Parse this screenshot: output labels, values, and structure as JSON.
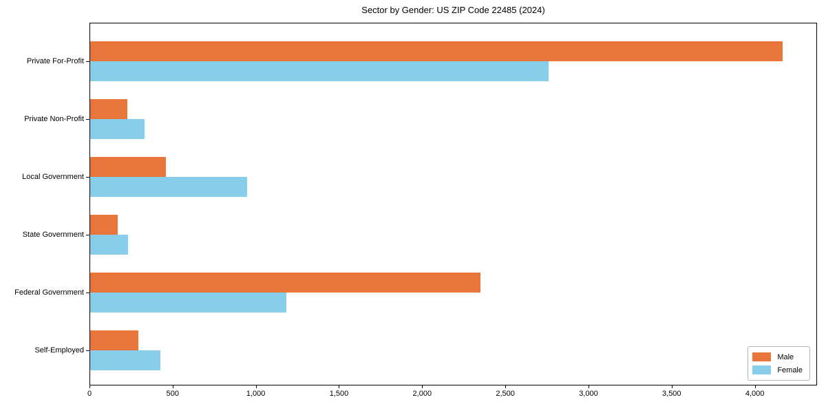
{
  "chart_data": {
    "type": "bar",
    "orientation": "horizontal",
    "title": "Sector by Gender: US ZIP Code 22485 (2024)",
    "categories": [
      "Private For-Profit",
      "Private Non-Profit",
      "Local Government",
      "State Government",
      "Federal Government",
      "Self-Employed"
    ],
    "series": [
      {
        "name": "Male",
        "color": "#E8763B",
        "values": [
          4163,
          222,
          456,
          166,
          2345,
          291
        ]
      },
      {
        "name": "Female",
        "color": "#87CEEB",
        "values": [
          2758,
          325,
          943,
          226,
          1181,
          421
        ]
      }
    ],
    "xlabel": "",
    "ylabel": "",
    "xlim": [
      0,
      4374
    ],
    "xticks": [
      0,
      500,
      1000,
      1500,
      2000,
      2500,
      3000,
      3500,
      4000
    ],
    "xtick_labels": [
      "0",
      "500",
      "1,000",
      "1,500",
      "2,000",
      "2,500",
      "3,000",
      "3,500",
      "4,000"
    ],
    "grid": false,
    "legend_position": "lower right"
  },
  "colors": {
    "male": "#E8763B",
    "female": "#87CEEB",
    "axis": "#000000",
    "background": "#FFFFFF",
    "legend_border": "#B3B3B3"
  }
}
